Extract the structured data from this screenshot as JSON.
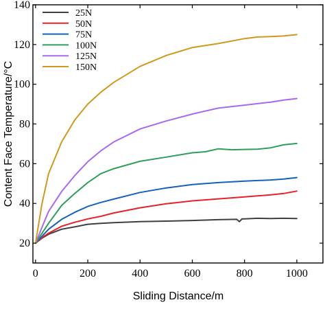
{
  "chart_data": {
    "type": "line",
    "xlabel": "Sliding Distance/m",
    "ylabel": "Content Face Temperature/°C",
    "xlim": [
      -10,
      1100
    ],
    "ylim": [
      10,
      140
    ],
    "xticks": [
      0,
      200,
      400,
      600,
      800,
      1000
    ],
    "yticks": [
      20,
      40,
      60,
      80,
      100,
      120,
      140
    ],
    "x_tick_labels": [
      "0",
      "200",
      "400",
      "600",
      "800",
      "1000"
    ],
    "y_tick_labels": [
      "20",
      "40",
      "60",
      "80",
      "100",
      "120",
      "140"
    ],
    "legend_position": "top-left",
    "grid": false,
    "series": [
      {
        "name": "25N",
        "color": "#3f3f3f",
        "points": [
          [
            0,
            20
          ],
          [
            25,
            22.5
          ],
          [
            50,
            24.5
          ],
          [
            100,
            27
          ],
          [
            150,
            28.2
          ],
          [
            200,
            29.5
          ],
          [
            250,
            30
          ],
          [
            300,
            30.3
          ],
          [
            400,
            30.8
          ],
          [
            500,
            31.1
          ],
          [
            600,
            31.4
          ],
          [
            700,
            31.8
          ],
          [
            770,
            32.0
          ],
          [
            780,
            30.8
          ],
          [
            790,
            32.2
          ],
          [
            800,
            32.2
          ],
          [
            850,
            32.5
          ],
          [
            900,
            32.4
          ],
          [
            950,
            32.5
          ],
          [
            1000,
            32.4
          ]
        ]
      },
      {
        "name": "50N",
        "color": "#e8202a",
        "points": [
          [
            0,
            20
          ],
          [
            25,
            22.8
          ],
          [
            50,
            25
          ],
          [
            100,
            28.5
          ],
          [
            150,
            30.5
          ],
          [
            200,
            32.2
          ],
          [
            250,
            33.5
          ],
          [
            300,
            35.2
          ],
          [
            400,
            37.8
          ],
          [
            500,
            39.8
          ],
          [
            600,
            41.3
          ],
          [
            700,
            42.3
          ],
          [
            800,
            43.3
          ],
          [
            900,
            44.3
          ],
          [
            950,
            45
          ],
          [
            1000,
            46.2
          ]
        ]
      },
      {
        "name": "75N",
        "color": "#1560bd",
        "points": [
          [
            0,
            20
          ],
          [
            25,
            23.5
          ],
          [
            50,
            27
          ],
          [
            100,
            32
          ],
          [
            150,
            35.5
          ],
          [
            200,
            38.5
          ],
          [
            250,
            40.5
          ],
          [
            300,
            42.2
          ],
          [
            400,
            45.5
          ],
          [
            500,
            47.8
          ],
          [
            600,
            49.5
          ],
          [
            700,
            50.5
          ],
          [
            800,
            51.2
          ],
          [
            900,
            51.8
          ],
          [
            950,
            52.3
          ],
          [
            1000,
            53
          ]
        ]
      },
      {
        "name": "100N",
        "color": "#2e9e5b",
        "points": [
          [
            0,
            20
          ],
          [
            25,
            25
          ],
          [
            50,
            30
          ],
          [
            100,
            39
          ],
          [
            150,
            45
          ],
          [
            200,
            50.5
          ],
          [
            250,
            55
          ],
          [
            300,
            57.5
          ],
          [
            400,
            61.2
          ],
          [
            500,
            63.3
          ],
          [
            600,
            65.5
          ],
          [
            650,
            66
          ],
          [
            700,
            67.5
          ],
          [
            750,
            67
          ],
          [
            800,
            67.2
          ],
          [
            850,
            67.3
          ],
          [
            900,
            68
          ],
          [
            950,
            69.5
          ],
          [
            1000,
            70.2
          ]
        ]
      },
      {
        "name": "125N",
        "color": "#a768f0",
        "points": [
          [
            0,
            20
          ],
          [
            25,
            28
          ],
          [
            50,
            36
          ],
          [
            100,
            46
          ],
          [
            150,
            54
          ],
          [
            200,
            61
          ],
          [
            250,
            66.5
          ],
          [
            300,
            71
          ],
          [
            400,
            77.5
          ],
          [
            500,
            81.5
          ],
          [
            600,
            85
          ],
          [
            650,
            86.5
          ],
          [
            700,
            88
          ],
          [
            800,
            89.5
          ],
          [
            900,
            91
          ],
          [
            950,
            92
          ],
          [
            1000,
            92.8
          ]
        ]
      },
      {
        "name": "150N",
        "color": "#cf9a1a",
        "points": [
          [
            0,
            20
          ],
          [
            10,
            28
          ],
          [
            25,
            40
          ],
          [
            50,
            55
          ],
          [
            100,
            71
          ],
          [
            150,
            82
          ],
          [
            200,
            90
          ],
          [
            250,
            96
          ],
          [
            300,
            101
          ],
          [
            400,
            109
          ],
          [
            500,
            114.5
          ],
          [
            600,
            118.5
          ],
          [
            700,
            120.5
          ],
          [
            800,
            123
          ],
          [
            850,
            123.8
          ],
          [
            900,
            124
          ],
          [
            950,
            124.3
          ],
          [
            1000,
            125
          ]
        ]
      }
    ]
  }
}
